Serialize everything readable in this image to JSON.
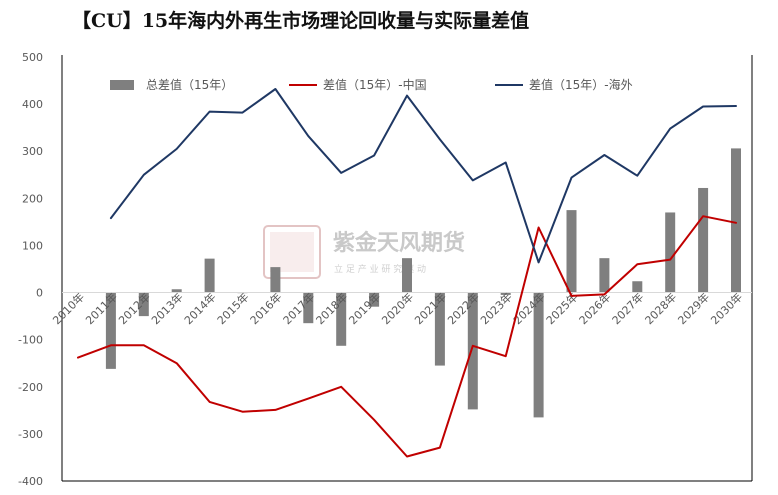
{
  "title": "【CU】15年海内外再生市场理论回收量与实际量差值",
  "watermark": {
    "brand": "紫金天风期货",
    "tagline": "立 足 产 业   研 究 驱 动"
  },
  "colors": {
    "total": "#7f7f7f",
    "china": "#c00000",
    "overseas": "#1f3864",
    "axis": "#595959",
    "frame": "#000000"
  },
  "chart_data": {
    "type": "bar+line",
    "title": "【CU】15年海内外再生市场理论回收量与实际量差值",
    "xlabel": "",
    "ylabel": "",
    "ylim": [
      -400,
      500
    ],
    "yticks": [
      500,
      400,
      300,
      200,
      100,
      0,
      -100,
      -200,
      -300,
      -400
    ],
    "grid": false,
    "legend_position": "top",
    "categories": [
      "2010年",
      "2011年",
      "2012年",
      "2013年",
      "2014年",
      "2015年",
      "2016年",
      "2017年",
      "2018年",
      "2019年",
      "2020年",
      "2021年",
      "2022年",
      "2023年",
      "2024年",
      "2025年",
      "2026年",
      "2027年",
      "2028年",
      "2029年",
      "2030年"
    ],
    "series": [
      {
        "name": "总差值（15年）",
        "type": "bar",
        "color": "#7f7f7f",
        "values": [
          null,
          -162,
          -50,
          7,
          72,
          0,
          54,
          -65,
          -113,
          -30,
          73,
          -155,
          -248,
          -5,
          -265,
          175,
          73,
          24,
          170,
          222,
          306
        ]
      },
      {
        "name": "差值（15年）-中国",
        "type": "line",
        "color": "#c00000",
        "values": [
          -138,
          -112,
          -112,
          -150,
          -232,
          -253,
          -249,
          -225,
          -200,
          -270,
          -348,
          -329,
          -113,
          -135,
          138,
          -7,
          -4,
          60,
          70,
          162,
          148
        ]
      },
      {
        "name": "差值（15年）-海外",
        "type": "line",
        "color": "#1f3864",
        "values": [
          null,
          158,
          250,
          305,
          384,
          382,
          432,
          332,
          254,
          291,
          418,
          325,
          238,
          276,
          64,
          244,
          292,
          248,
          348,
          395,
          396
        ]
      }
    ]
  }
}
